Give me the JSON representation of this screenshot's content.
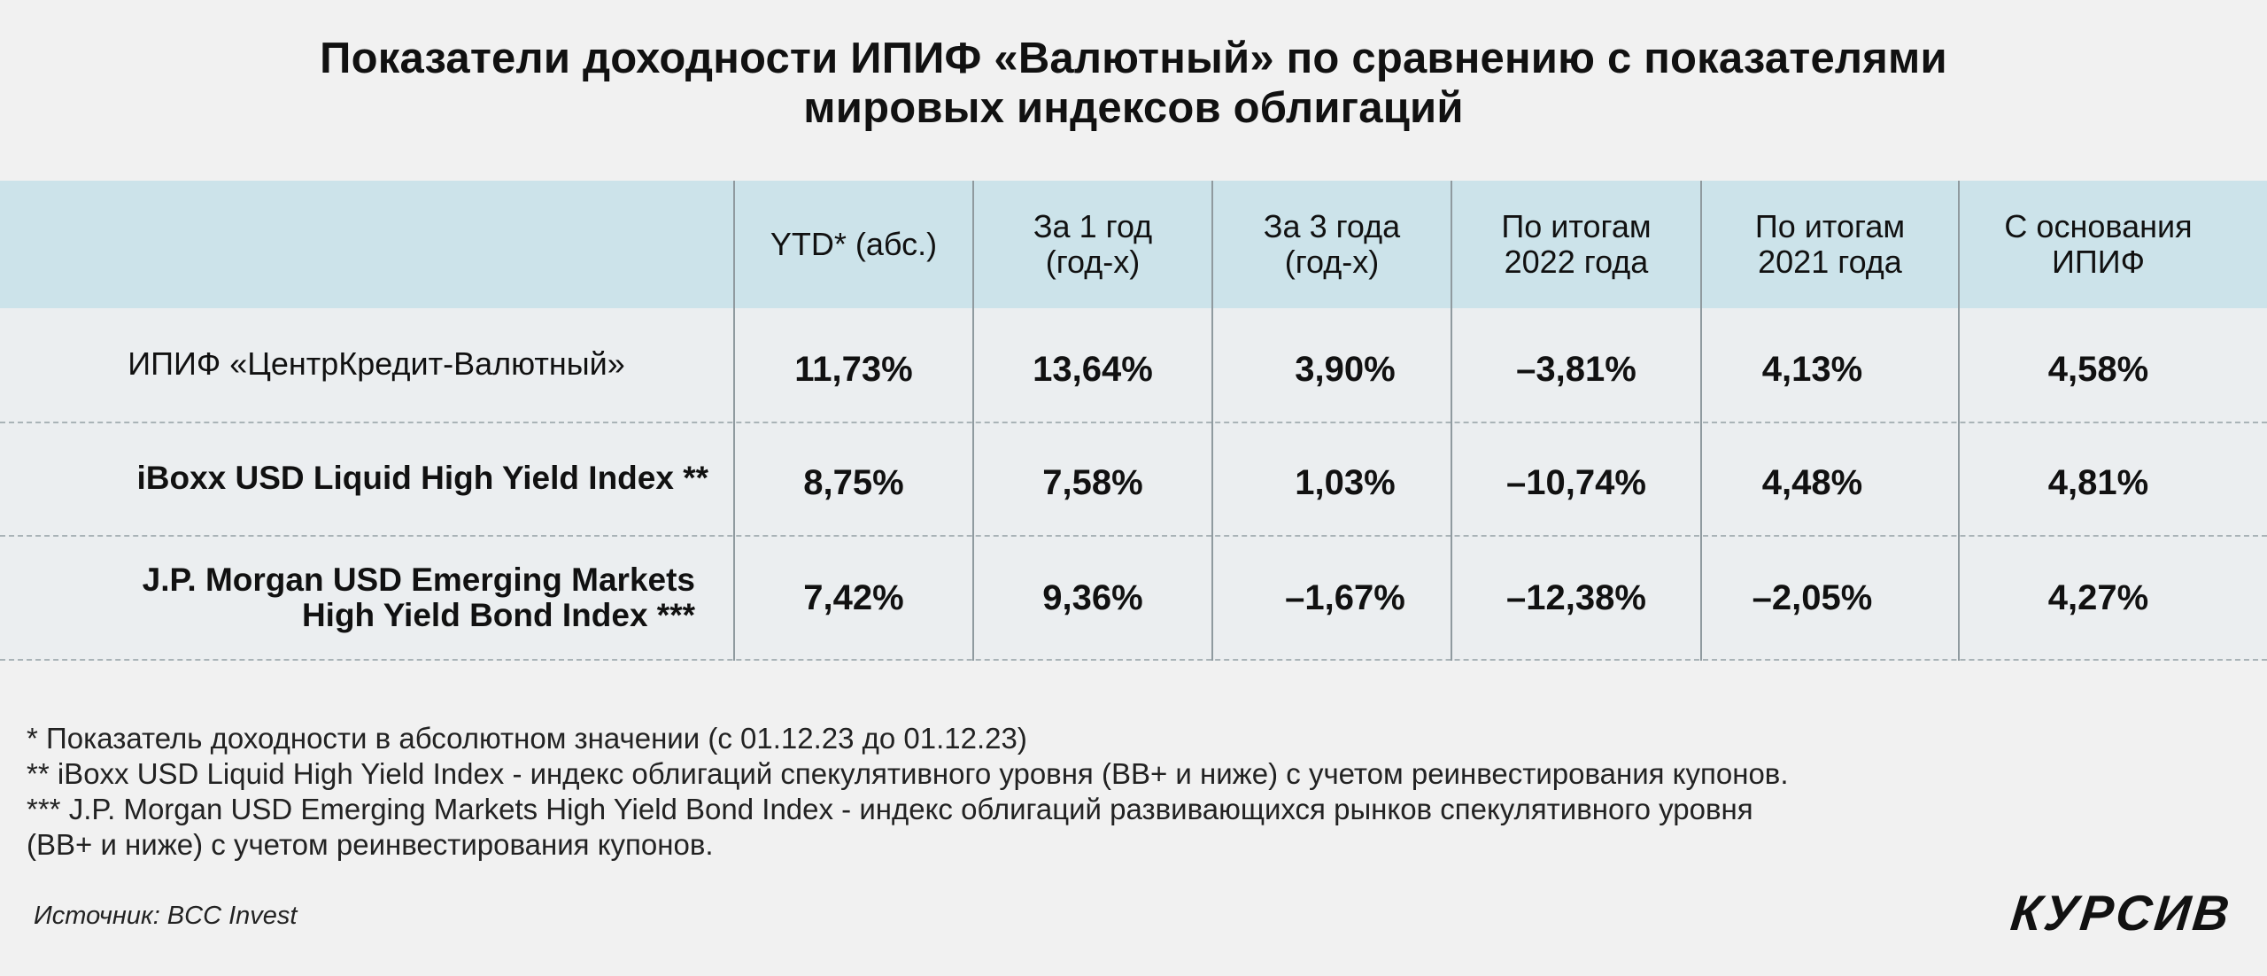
{
  "title": {
    "line1": "Показатели доходности ИПИФ «Валютный» по сравнению с показателями",
    "line2": "мировых индексов облигаций"
  },
  "table": {
    "columns": [
      "YTD* (абс.)",
      "За   1 год\n(год-х)",
      "За 3 года\n(год-х)",
      "По итогам\n2022 года",
      "По итогам\n2021 года",
      "С основания\nИПИФ"
    ],
    "rows": [
      {
        "label": "ИПИФ «ЦентрКредит-Валютный»",
        "values": [
          "11,73%",
          "13,64%",
          "3,90%",
          "–3,81%",
          "4,13%",
          "4,58%"
        ]
      },
      {
        "label": "iBoxx  USD Liquid High Yield Index **",
        "values": [
          "8,75%",
          "7,58%",
          "1,03%",
          "–10,74%",
          "4,48%",
          "4,81%"
        ]
      },
      {
        "label": "J.P.   Morgan USD Emerging Markets\nHigh Yield Bond Index ***",
        "values": [
          "7,42%",
          "9,36%",
          "–1,67%",
          "–12,38%",
          "–2,05%",
          "4,27%"
        ]
      }
    ]
  },
  "footnotes": [
    "* Показатель доходности в абсолютном значении (с 01.12.23 до 01.12.23)",
    "** iBoxx USD Liquid High Yield Index - индекс облигаций спекулятивного уровня (BB+ и ниже) с учетом реинвестирования купонов.",
    "*** J.P. Morgan USD Emerging Markets High Yield Bond Index - индекс облигаций развивающихся рынков спекулятивного уровня",
    "(BB+ и ниже) с учетом реинвестирования купонов."
  ],
  "source": "Источник: BCC Invest",
  "logo": "КУРСИВ",
  "colors": {
    "background": "#f1f1f1",
    "header": "#cce3ea",
    "body": "#ebeef0"
  }
}
